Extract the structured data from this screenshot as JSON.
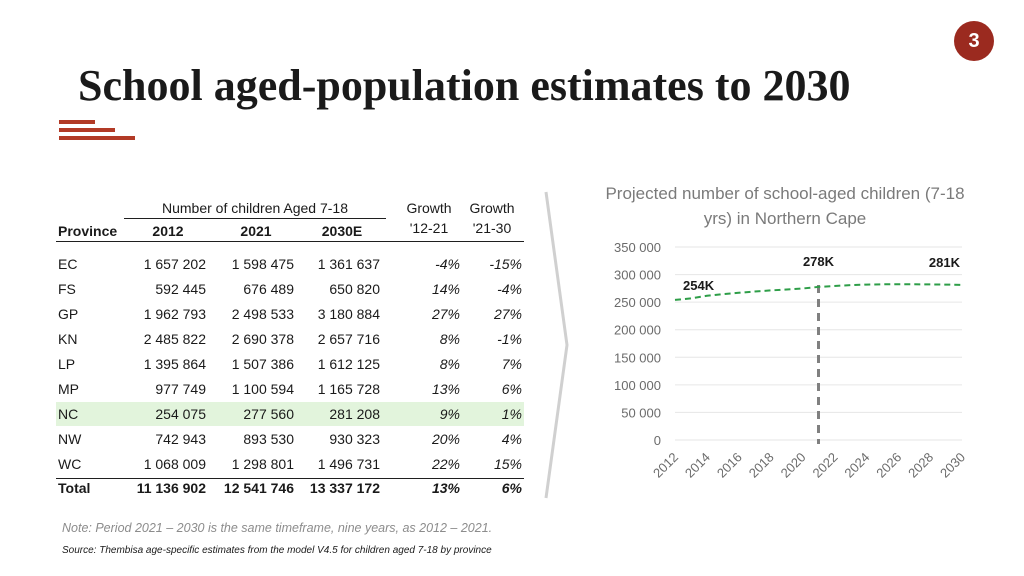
{
  "slide": {
    "number": "3",
    "title": "School aged-population estimates to 2030"
  },
  "table": {
    "group_header": "Number of children Aged 7-18",
    "headers": {
      "province": "Province",
      "y2012": "2012",
      "y2021": "2021",
      "y2030": "2030E",
      "growth1": "Growth",
      "growth1_sub": "'12-21",
      "growth2": "Growth",
      "growth2_sub": "'21-30"
    },
    "rows": [
      {
        "province": "EC",
        "y2012": "1 657 202",
        "y2021": "1 598 475",
        "y2030": "1 361 637",
        "growth1": "-4%",
        "growth2": "-15%"
      },
      {
        "province": "FS",
        "y2012": "592 445",
        "y2021": "676 489",
        "y2030": "650 820",
        "growth1": "14%",
        "growth2": "-4%"
      },
      {
        "province": "GP",
        "y2012": "1 962 793",
        "y2021": "2 498 533",
        "y2030": "3 180 884",
        "growth1": "27%",
        "growth2": "27%"
      },
      {
        "province": "KN",
        "y2012": "2 485 822",
        "y2021": "2 690 378",
        "y2030": "2 657 716",
        "growth1": "8%",
        "growth2": "-1%"
      },
      {
        "province": "LP",
        "y2012": "1 395 864",
        "y2021": "1 507 386",
        "y2030": "1 612 125",
        "growth1": "8%",
        "growth2": "7%"
      },
      {
        "province": "MP",
        "y2012": "977 749",
        "y2021": "1 100 594",
        "y2030": "1 165 728",
        "growth1": "13%",
        "growth2": "6%"
      },
      {
        "province": "NC",
        "y2012": "254 075",
        "y2021": "277 560",
        "y2030": "281 208",
        "growth1": "9%",
        "growth2": "1%"
      },
      {
        "province": "NW",
        "y2012": "742 943",
        "y2021": "893 530",
        "y2030": "930 323",
        "growth1": "20%",
        "growth2": "4%"
      },
      {
        "province": "WC",
        "y2012": "1 068 009",
        "y2021": "1 298 801",
        "y2030": "1 496 731",
        "growth1": "22%",
        "growth2": "15%"
      }
    ],
    "total": {
      "province": "Total",
      "y2012": "11 136 902",
      "y2021": "12 541 746",
      "y2030": "13 337 172",
      "growth1": "13%",
      "growth2": "6%"
    }
  },
  "note": "Note: Period 2021 – 2030 is the same timeframe, nine years, as 2012 – 2021.",
  "source": "Source: Thembisa age-specific estimates from the model V4.5 for children aged 7-18 by province",
  "colors": {
    "accent": "#9b2a1f",
    "line": "#2e9e48",
    "highlight_row": "#e2f4dc",
    "marker": "#808080"
  },
  "chart_data": {
    "type": "line",
    "title": "Projected number of school-aged children (7-18 yrs) in Northern Cape",
    "x": [
      2012,
      2013,
      2014,
      2015,
      2016,
      2017,
      2018,
      2019,
      2020,
      2021,
      2022,
      2023,
      2024,
      2025,
      2026,
      2027,
      2028,
      2029,
      2030
    ],
    "series": [
      {
        "name": "Northern Cape",
        "values": [
          254075,
          256800,
          261500,
          264600,
          267000,
          269300,
          271300,
          273000,
          274700,
          277560,
          279300,
          280900,
          281800,
          282300,
          282500,
          282400,
          282200,
          281800,
          281208
        ]
      }
    ],
    "xticks": [
      "2012",
      "2014",
      "2016",
      "2018",
      "2020",
      "2022",
      "2024",
      "2026",
      "2028",
      "2030"
    ],
    "ylim": [
      0,
      350000
    ],
    "yticks": [
      {
        "value": 0,
        "label": "0"
      },
      {
        "value": 50000,
        "label": "50 000"
      },
      {
        "value": 100000,
        "label": "100 000"
      },
      {
        "value": 150000,
        "label": "150 000"
      },
      {
        "value": 200000,
        "label": "200 000"
      },
      {
        "value": 250000,
        "label": "250 000"
      },
      {
        "value": 300000,
        "label": "300 000"
      },
      {
        "value": 350000,
        "label": "350 000"
      }
    ],
    "grid": true,
    "vertical_marker_x": 2021,
    "annotations": [
      {
        "x": 2012,
        "value": 254075,
        "label": "254K"
      },
      {
        "x": 2021,
        "value": 277560,
        "label": "278K"
      },
      {
        "x": 2030,
        "value": 281208,
        "label": "281K"
      }
    ]
  }
}
